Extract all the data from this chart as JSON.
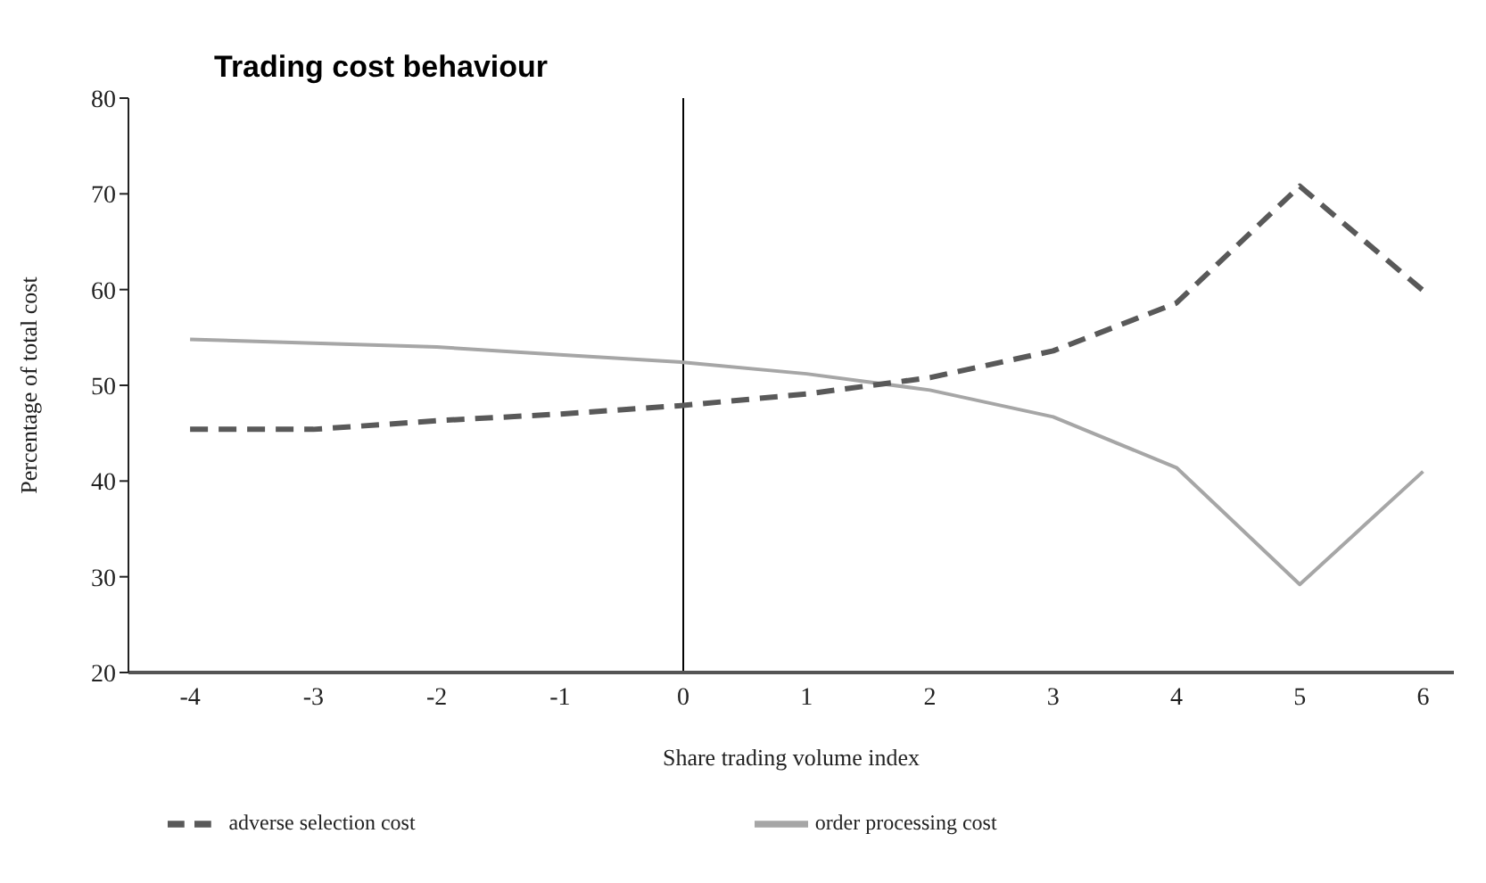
{
  "chart_data": {
    "type": "line",
    "title": "Trading cost behaviour",
    "xlabel": "Share trading volume index",
    "ylabel": "Percentage of total cost",
    "x": [
      -4,
      -3,
      -2,
      -1,
      0,
      1,
      2,
      3,
      4,
      5,
      6
    ],
    "series": [
      {
        "name": "order processing cost",
        "color": "#a6a6a6",
        "line_style": "solid",
        "values": [
          54.8,
          54.4,
          54.0,
          53.2,
          52.4,
          51.2,
          49.5,
          46.7,
          41.4,
          29.2,
          41.0
        ]
      },
      {
        "name": "adverse selection cost",
        "color": "#595959",
        "line_style": "dashed",
        "values": [
          45.4,
          45.4,
          46.3,
          47.0,
          47.9,
          49.1,
          50.8,
          53.6,
          58.6,
          70.8,
          59.9
        ]
      }
    ],
    "xlim": [
      -4.5,
      6.25
    ],
    "xticks": [
      -4,
      -3,
      -2,
      -1,
      0,
      1,
      2,
      3,
      4,
      5,
      6
    ],
    "ylim": [
      20,
      80
    ],
    "yticks": [
      20,
      30,
      40,
      50,
      60,
      70,
      80
    ],
    "ref_lines": [
      {
        "axis": "x",
        "value": 0,
        "color": "#000000"
      }
    ],
    "grid": false,
    "legend": "bottom",
    "marker": "none"
  }
}
